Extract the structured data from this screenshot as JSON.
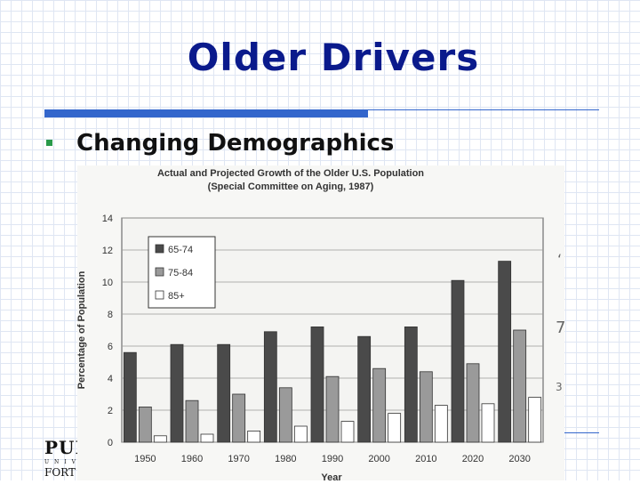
{
  "slide": {
    "title": "Older Drivers",
    "bullet": "Changing Demographics",
    "logo": {
      "line1": "PUR",
      "line2": "UNIV",
      "line3": "FORT W"
    },
    "margin_fragments": [
      "‘",
      "7",
      "3"
    ]
  },
  "colors": {
    "title": "#0a1a8c",
    "accent": "#3366cc",
    "bullet": "#2a9a4a"
  },
  "chart_data": {
    "type": "bar",
    "title": "Actual and Projected Growth of the Older U.S. Population",
    "subtitle": "(Special Committee on Aging, 1987)",
    "xlabel": "Year",
    "ylabel": "Percentage of Population",
    "ylim": [
      0,
      14
    ],
    "yticks": [
      0,
      2,
      4,
      6,
      8,
      10,
      12,
      14
    ],
    "grid": true,
    "legend_position": "top-left",
    "categories": [
      "1950",
      "1960",
      "1970",
      "1980",
      "1990",
      "2000",
      "2010",
      "2020",
      "2030"
    ],
    "series": [
      {
        "name": "65-74",
        "color": "#4a4a4a",
        "values": [
          5.6,
          6.1,
          6.1,
          6.9,
          7.2,
          6.6,
          7.2,
          10.1,
          11.3
        ]
      },
      {
        "name": "75-84",
        "color": "#9a9a9a",
        "values": [
          2.2,
          2.6,
          3.0,
          3.4,
          4.1,
          4.6,
          4.4,
          4.9,
          7.0
        ]
      },
      {
        "name": "85+",
        "color": "#ffffff",
        "values": [
          0.4,
          0.5,
          0.7,
          1.0,
          1.3,
          1.8,
          2.3,
          2.4,
          2.8
        ]
      }
    ]
  }
}
